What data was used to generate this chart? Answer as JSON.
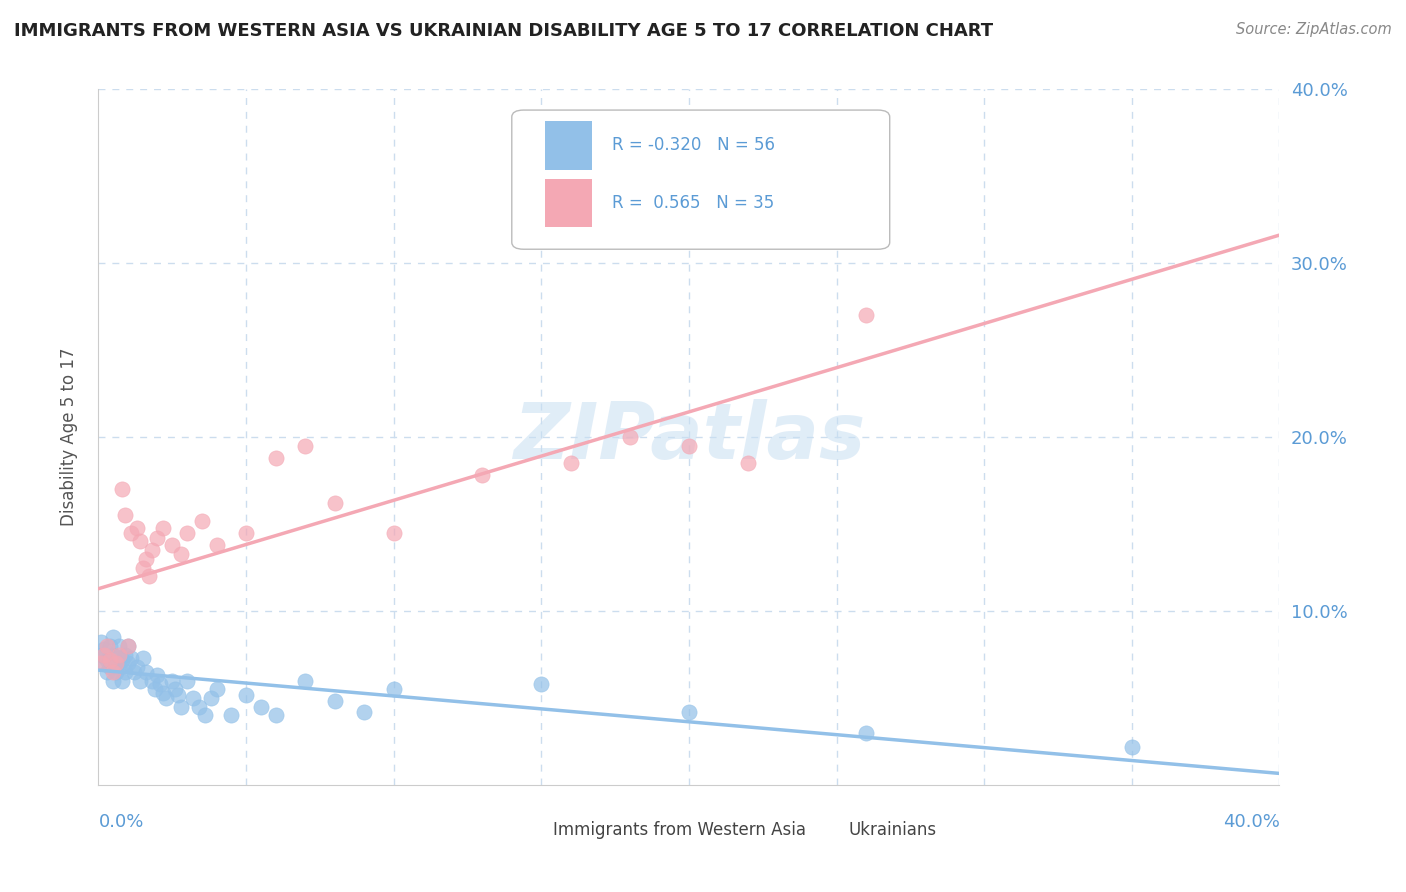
{
  "title": "IMMIGRANTS FROM WESTERN ASIA VS UKRAINIAN DISABILITY AGE 5 TO 17 CORRELATION CHART",
  "source": "Source: ZipAtlas.com",
  "ylabel": "Disability Age 5 to 17",
  "legend_label1": "Immigrants from Western Asia",
  "legend_label2": "Ukrainians",
  "R1": -0.32,
  "N1": 56,
  "R2": 0.565,
  "N2": 35,
  "blue_color": "#92C0E8",
  "pink_color": "#F4A8B4",
  "title_color": "#222222",
  "axis_color": "#5B9BD5",
  "grid_color": "#CCDDEE",
  "blue_scatter_x": [
    0.001,
    0.001,
    0.002,
    0.002,
    0.003,
    0.003,
    0.004,
    0.004,
    0.005,
    0.005,
    0.005,
    0.006,
    0.006,
    0.007,
    0.007,
    0.007,
    0.008,
    0.008,
    0.009,
    0.009,
    0.01,
    0.01,
    0.011,
    0.012,
    0.013,
    0.014,
    0.015,
    0.016,
    0.018,
    0.019,
    0.02,
    0.021,
    0.022,
    0.023,
    0.025,
    0.026,
    0.027,
    0.028,
    0.03,
    0.032,
    0.034,
    0.036,
    0.038,
    0.04,
    0.045,
    0.05,
    0.055,
    0.06,
    0.07,
    0.08,
    0.09,
    0.1,
    0.15,
    0.2,
    0.26,
    0.35
  ],
  "blue_scatter_y": [
    0.075,
    0.082,
    0.07,
    0.078,
    0.065,
    0.072,
    0.068,
    0.08,
    0.06,
    0.075,
    0.085,
    0.07,
    0.065,
    0.08,
    0.073,
    0.068,
    0.06,
    0.072,
    0.065,
    0.075,
    0.07,
    0.08,
    0.073,
    0.065,
    0.068,
    0.06,
    0.073,
    0.065,
    0.06,
    0.055,
    0.063,
    0.058,
    0.053,
    0.05,
    0.06,
    0.055,
    0.052,
    0.045,
    0.06,
    0.05,
    0.045,
    0.04,
    0.05,
    0.055,
    0.04,
    0.052,
    0.045,
    0.04,
    0.06,
    0.048,
    0.042,
    0.055,
    0.058,
    0.042,
    0.03,
    0.022
  ],
  "pink_scatter_x": [
    0.001,
    0.002,
    0.003,
    0.004,
    0.005,
    0.006,
    0.007,
    0.008,
    0.009,
    0.01,
    0.011,
    0.013,
    0.014,
    0.015,
    0.016,
    0.017,
    0.018,
    0.02,
    0.022,
    0.025,
    0.028,
    0.03,
    0.035,
    0.04,
    0.05,
    0.06,
    0.07,
    0.08,
    0.1,
    0.13,
    0.16,
    0.18,
    0.2,
    0.22,
    0.26
  ],
  "pink_scatter_y": [
    0.07,
    0.075,
    0.08,
    0.072,
    0.065,
    0.07,
    0.075,
    0.17,
    0.155,
    0.08,
    0.145,
    0.148,
    0.14,
    0.125,
    0.13,
    0.12,
    0.135,
    0.142,
    0.148,
    0.138,
    0.133,
    0.145,
    0.152,
    0.138,
    0.145,
    0.188,
    0.195,
    0.162,
    0.145,
    0.178,
    0.185,
    0.2,
    0.195,
    0.185,
    0.27
  ],
  "xlim": [
    0.0,
    0.4
  ],
  "ylim": [
    0.0,
    0.4
  ]
}
